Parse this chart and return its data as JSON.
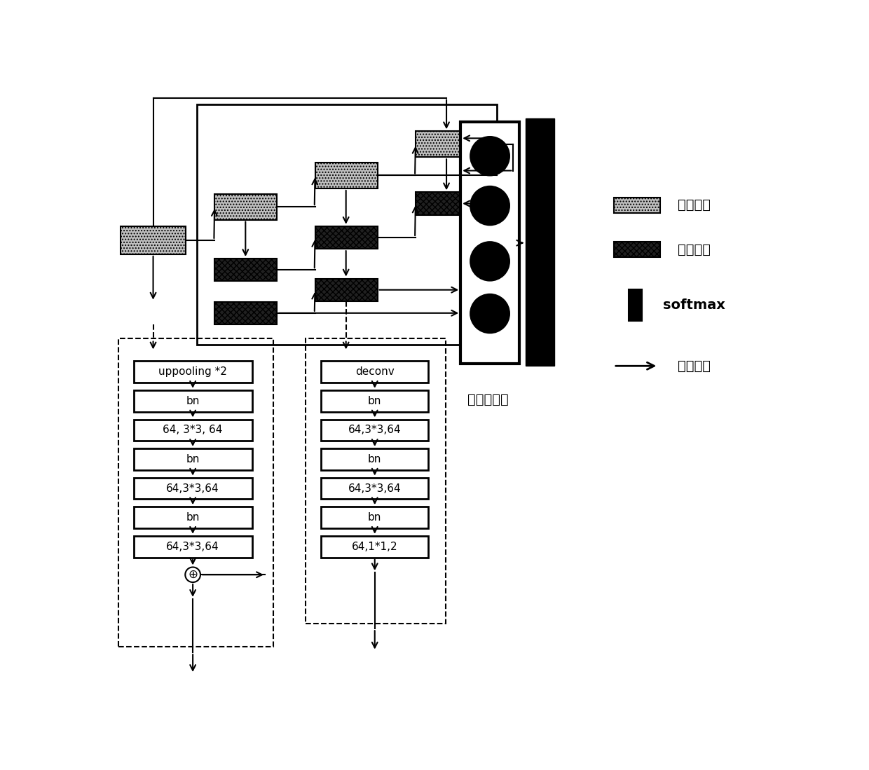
{
  "bg_color": "#ffffff",
  "scale_fc": "#c0c0c0",
  "struct_fc": "#202020",
  "legend_labels": [
    "尺度模块",
    "结构模块",
    "softmax",
    "特征融合"
  ],
  "note_text": "可学习权重",
  "left_box_labels": [
    "uppooling *2",
    "bn",
    "64, 3*3, 64",
    "bn",
    "64,3*3,64",
    "bn",
    "64,3*3,64"
  ],
  "right_box_labels": [
    "deconv",
    "bn",
    "64,3*3,64",
    "bn",
    "64,3*3,64",
    "bn",
    "64,1*1,2"
  ],
  "scale_hatch": "....",
  "struct_hatch": "xxxx"
}
